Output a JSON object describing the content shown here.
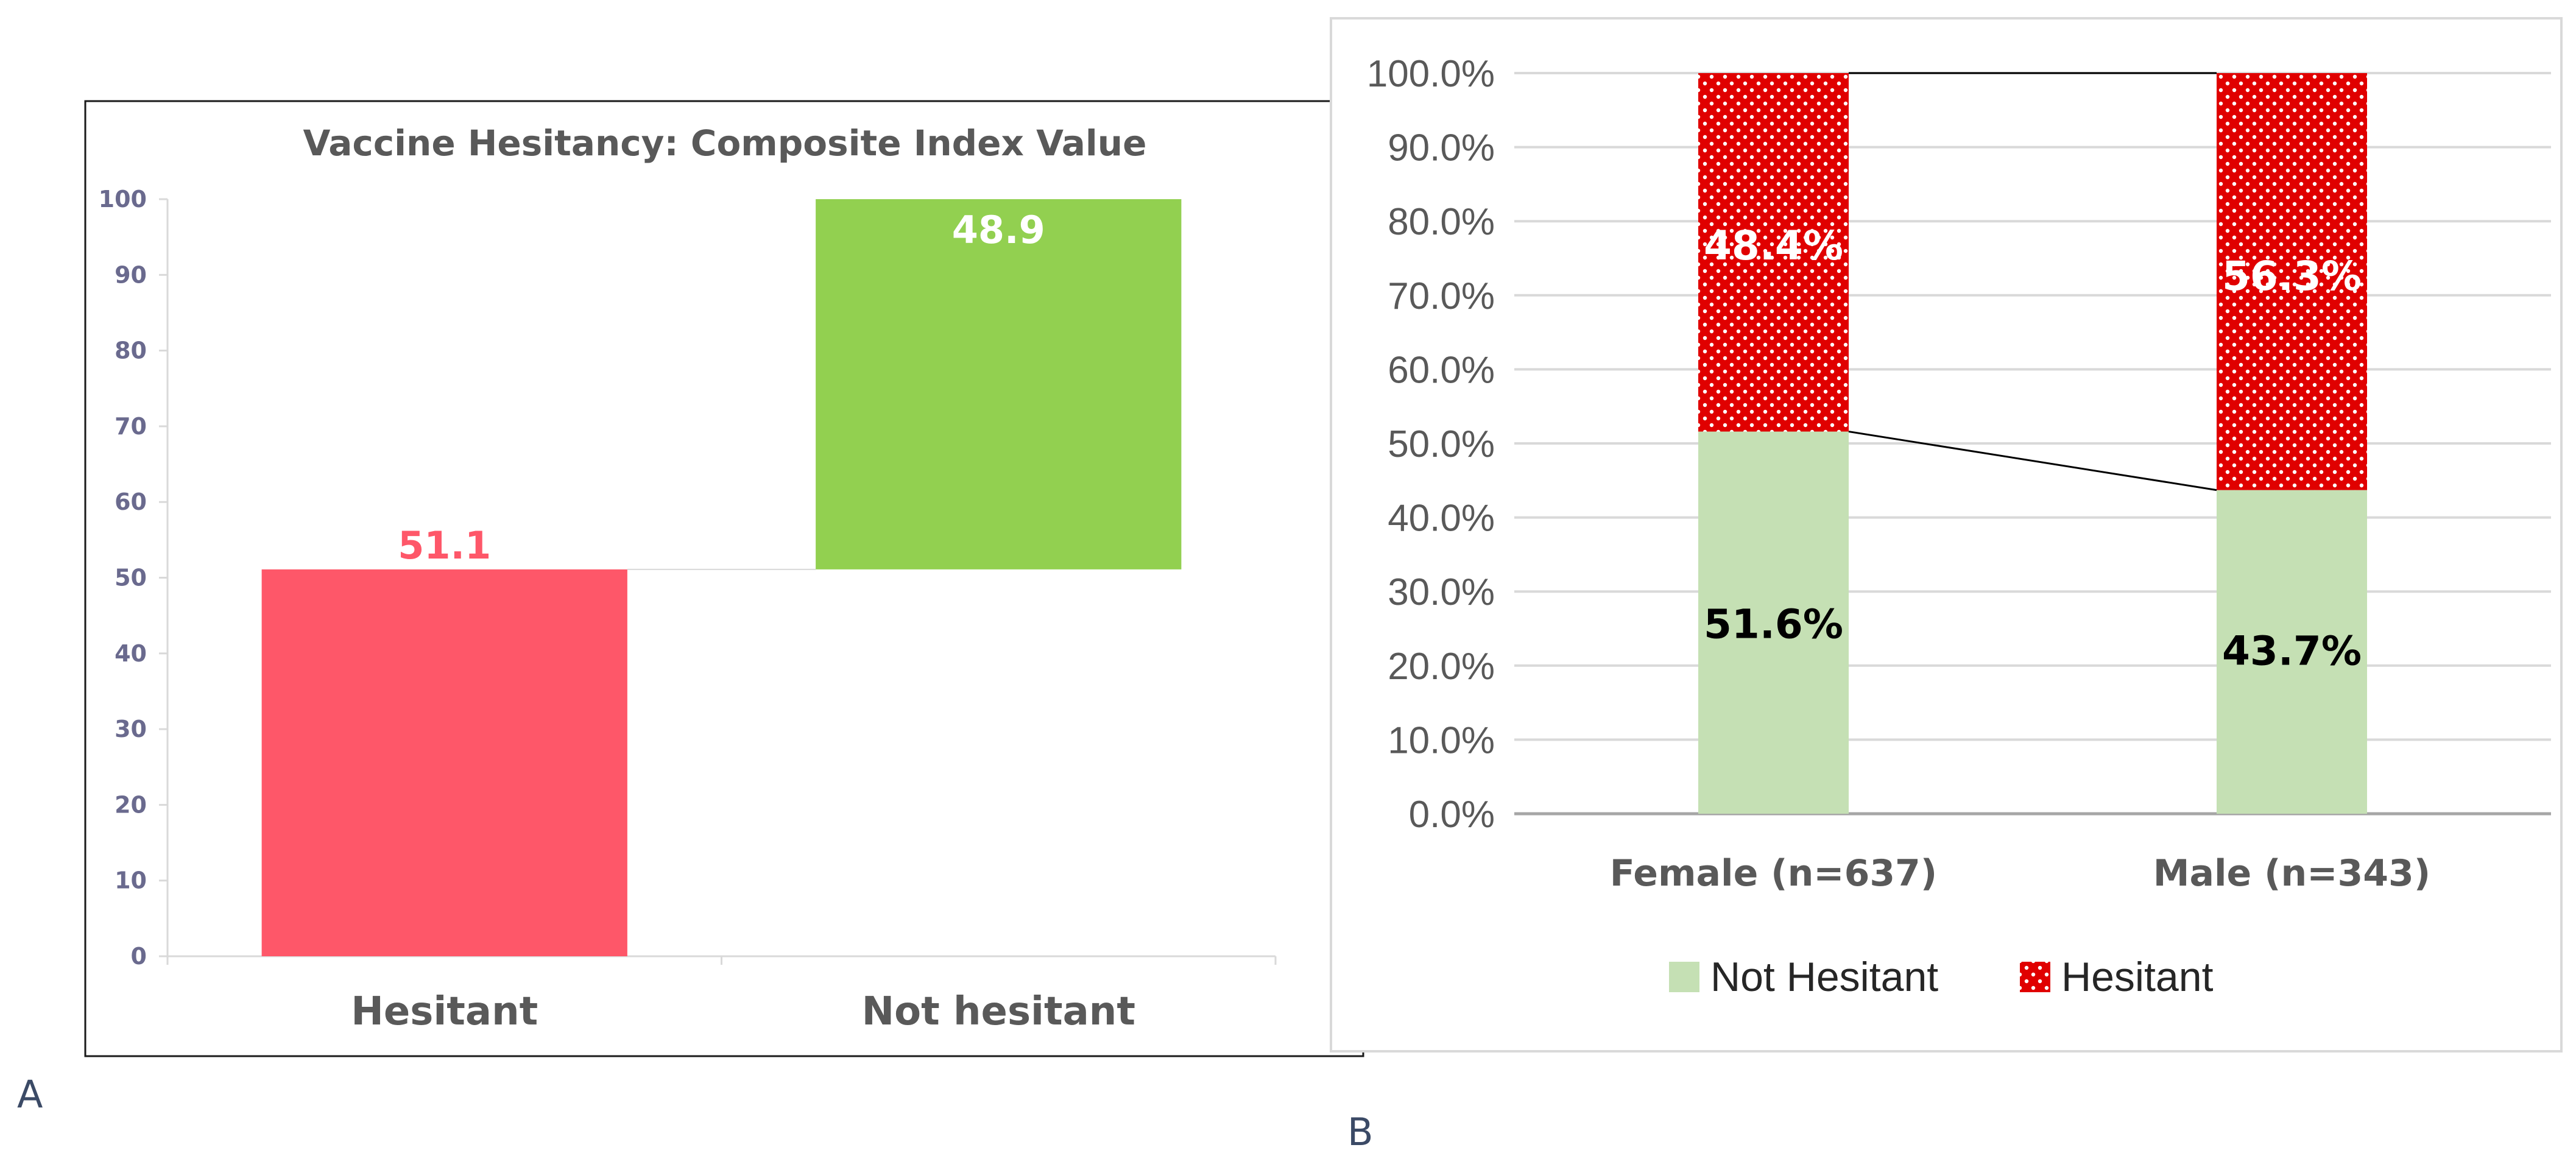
{
  "panel_labels": {
    "a": "A",
    "b": "B"
  },
  "chart_data": [
    {
      "id": "A",
      "type": "bar",
      "style": "waterfall",
      "title": "Vaccine Hesitancy: Composite Index Value",
      "categories": [
        "Hesitant",
        "Not hesitant"
      ],
      "values": [
        51.1,
        48.9
      ],
      "bases": [
        0,
        51.1
      ],
      "value_labels": [
        "51.1",
        "48.9"
      ],
      "ylim": [
        0,
        100
      ],
      "yticks": [
        0,
        10,
        20,
        30,
        40,
        50,
        60,
        70,
        80,
        90,
        100
      ],
      "xlabel": "",
      "ylabel": "",
      "colors": [
        "#fe5769",
        "#92d050"
      ],
      "tick_color": "#6a6a8e",
      "grid": false
    },
    {
      "id": "B",
      "type": "bar",
      "style": "stacked",
      "categories": [
        "Female (n=637)",
        "Male (n=343)"
      ],
      "series": [
        {
          "name": "Not Hesitant",
          "values": [
            51.6,
            43.7
          ],
          "labels": [
            "51.6%",
            "43.7%"
          ],
          "color": "#c5e0b4",
          "label_color": "#000000"
        },
        {
          "name": "Hesitant",
          "values": [
            48.4,
            56.3
          ],
          "labels": [
            "48.4%",
            "56.3%"
          ],
          "color": "#e00000",
          "label_color": "#ffffff",
          "pattern": "dotted"
        }
      ],
      "ylim": [
        0,
        100
      ],
      "yticks": [
        0,
        10,
        20,
        30,
        40,
        50,
        60,
        70,
        80,
        90,
        100
      ],
      "ytick_labels": [
        "0.0%",
        "10.0%",
        "20.0%",
        "30.0%",
        "40.0%",
        "50.0%",
        "60.0%",
        "70.0%",
        "80.0%",
        "90.0%",
        "100.0%"
      ],
      "grid": true,
      "series_lines": true,
      "legend": "bottom",
      "xlabel": "",
      "ylabel": ""
    }
  ]
}
